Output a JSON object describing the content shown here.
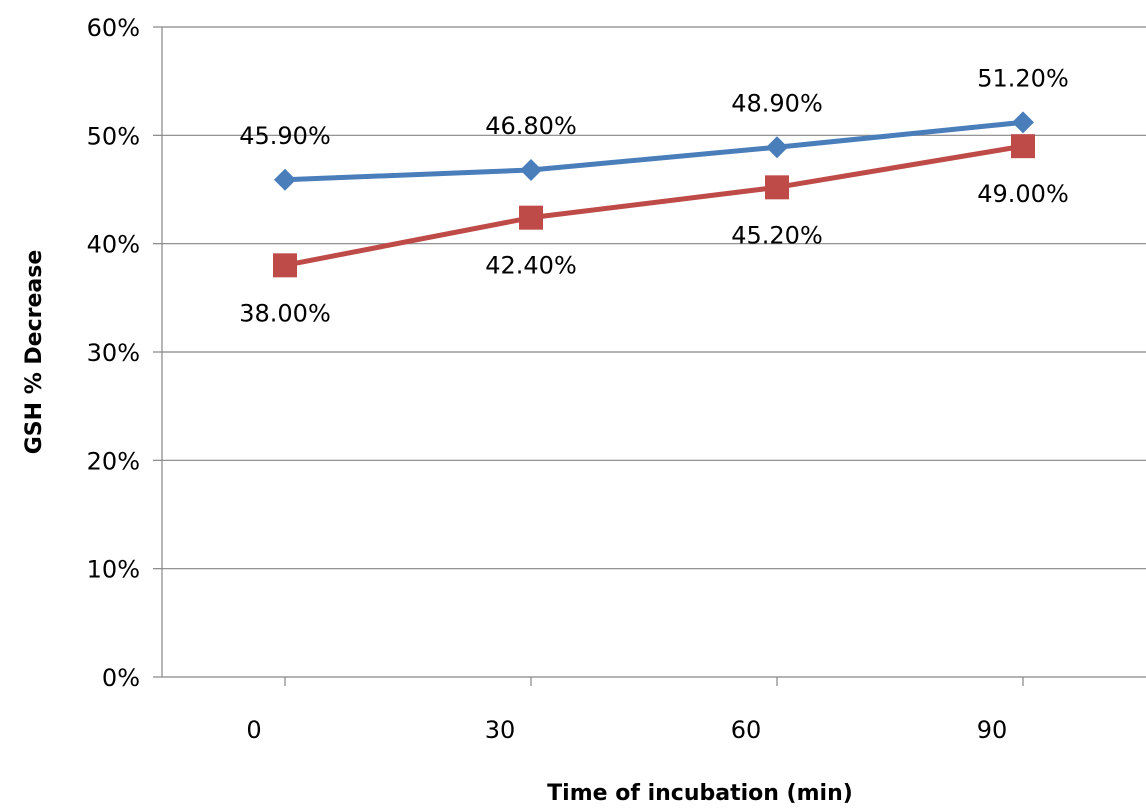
{
  "chart_data": {
    "type": "line",
    "title": "",
    "xlabel": "Time of incubation (min)",
    "ylabel": "GSH % Decrease",
    "categories": [
      "0",
      "30",
      "60",
      "90"
    ],
    "ylim": [
      0,
      0.6
    ],
    "yticks": [
      0,
      0.1,
      0.2,
      0.3,
      0.4,
      0.5,
      0.6
    ],
    "ytick_labels": [
      "0%",
      "10%",
      "20%",
      "30%",
      "40%",
      "50%",
      "60%"
    ],
    "grid": true,
    "legend": "none",
    "series": [
      {
        "values": [
          0.459,
          0.468,
          0.489,
          0.512
        ],
        "labels": [
          "45.90%",
          "46.80%",
          "48.90%",
          "51.20%"
        ],
        "color": "#4a7ebb",
        "marker": "diamond",
        "label_position": "above"
      },
      {
        "values": [
          0.38,
          0.424,
          0.452,
          0.49
        ],
        "labels": [
          "38.00%",
          "42.40%",
          "45.20%",
          "49.00%"
        ],
        "color": "#be4b48",
        "marker": "square",
        "label_position": "below"
      }
    ]
  }
}
